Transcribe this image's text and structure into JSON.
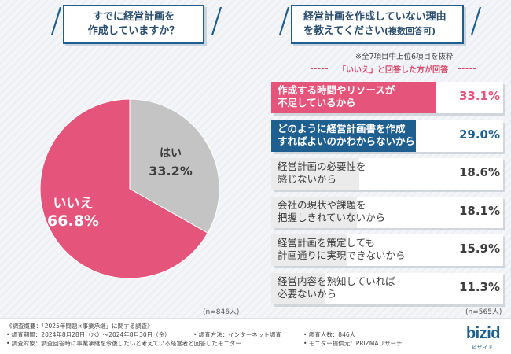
{
  "left_title": {
    "line1": "すでに経営計画を",
    "line2": "作成していますか？"
  },
  "right_title": {
    "line1": "経営計画を作成していない理由",
    "line2": "を教えてください",
    "line2_sub": "(複数回答可)"
  },
  "right_note": "※全7項目中上位6項目を抜粋",
  "right_subnote": "「いいえ」と回答した方が回答",
  "n_left": "(n=846人)",
  "n_right": "(n=565人)",
  "colors": {
    "pink": "#e5547a",
    "gray": "#c4c4c4",
    "navy": "#1f5f8f",
    "light": "#ebebeb"
  },
  "chart_data": [
    {
      "type": "pie",
      "title": "すでに経営計画を作成していますか？",
      "slices": [
        {
          "label": "はい",
          "value": 33.2,
          "display": "33.2%"
        },
        {
          "label": "いいえ",
          "value": 66.8,
          "display": "66.8%"
        }
      ]
    },
    {
      "type": "bar",
      "title": "経営計画を作成していない理由を教えてください(複数回答可)",
      "categories": [
        "作成する時間やリソースが\n不足しているから",
        "どのように経営計画書を作成\nすればよいのかわからないから",
        "経営計画の必要性を\n感じないから",
        "会社の現状や課題を\n把握しきれていないから",
        "経営計画を策定しても\n計画通りに実現できないから",
        "経営内容を熟知していれば\n必要ないから"
      ],
      "values": [
        33.1,
        29.0,
        18.6,
        18.1,
        15.9,
        11.3
      ],
      "displays": [
        "33.1%",
        "29.0%",
        "18.6%",
        "18.1%",
        "15.9%",
        "11.3%"
      ]
    }
  ],
  "footer": {
    "overview": "《調査概要：「2025年問題×事業承継」に関する調査》",
    "period": "• 調査期間：2024年8月28日（水）～2024年8月30日（金）",
    "method": "• 調査方法：インターネット調査",
    "count": "• 調査人数：846人",
    "target": "• 調査対象：調査回答時に事業承継を今後したいと考えている経営者と回答したモニター",
    "provider": "• モニター提供元：PRIZMAリサーチ",
    "logo": "bizid",
    "logo_sub": "ビザイド"
  }
}
